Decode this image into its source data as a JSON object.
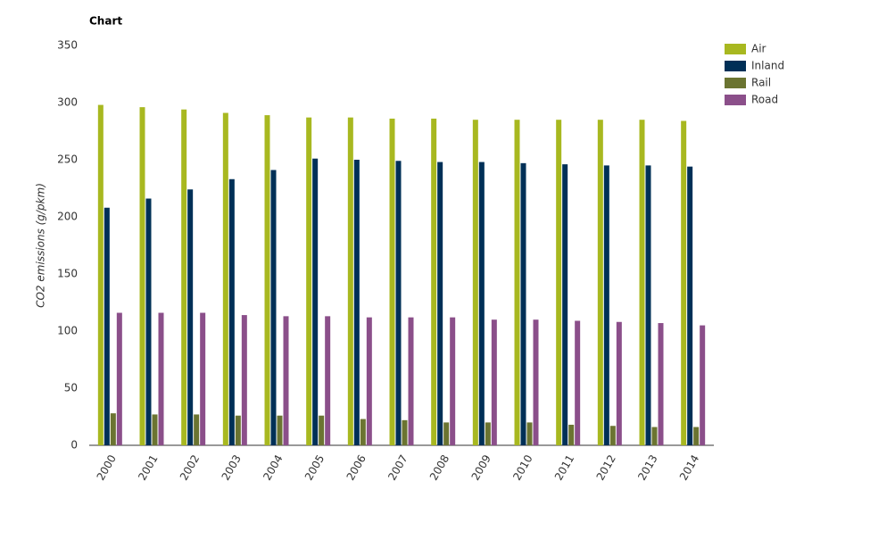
{
  "chart_data": {
    "type": "bar",
    "title": "Chart",
    "y_label": "CO2 emissions (g/pkm)",
    "categories": [
      "2000",
      "2001",
      "2002",
      "2003",
      "2004",
      "2005",
      "2006",
      "2007",
      "2008",
      "2009",
      "2010",
      "2011",
      "2012",
      "2013",
      "2014"
    ],
    "series": [
      {
        "name": "Air",
        "color": "#a8b820",
        "values": [
          298,
          296,
          294,
          291,
          289,
          287,
          287,
          286,
          286,
          285,
          285,
          285,
          285,
          285,
          284
        ]
      },
      {
        "name": "Inland",
        "color": "#003057",
        "values": [
          208,
          216,
          224,
          233,
          241,
          251,
          250,
          249,
          248,
          248,
          247,
          246,
          245,
          245,
          244
        ]
      },
      {
        "name": "Rail",
        "color": "#6b7431",
        "values": [
          28,
          27,
          27,
          26,
          26,
          26,
          23,
          22,
          20,
          20,
          20,
          18,
          17,
          16,
          16
        ]
      },
      {
        "name": "Road",
        "color": "#8b4f8a",
        "values": [
          116,
          116,
          116,
          114,
          113,
          113,
          112,
          112,
          112,
          110,
          110,
          109,
          108,
          107,
          105
        ]
      }
    ],
    "ylim": [
      0,
      350
    ],
    "yticks": [
      0,
      50,
      100,
      150,
      200,
      250,
      300,
      350
    ],
    "grid": false,
    "legend": "right"
  }
}
